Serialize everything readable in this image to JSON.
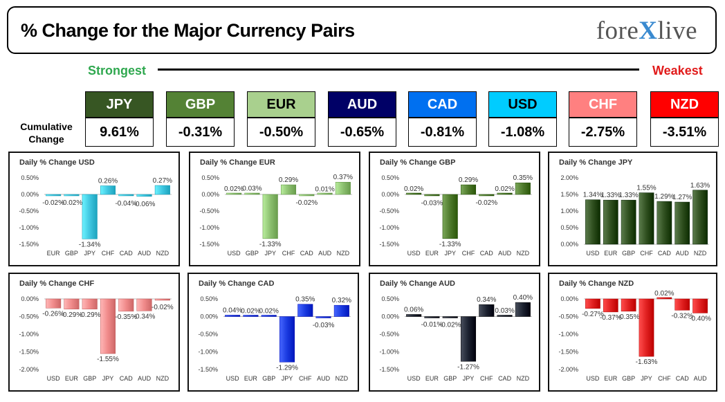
{
  "header": {
    "title": "% Change for the Major Currency Pairs",
    "logo": "forexlive"
  },
  "scale": {
    "strongest": "Strongest",
    "weakest": "Weakest",
    "cumulative_label": "Cumulative Change"
  },
  "currencies": [
    {
      "code": "JPY",
      "value": "9.61%",
      "bg": "#375623",
      "fg": "#ffffff"
    },
    {
      "code": "GBP",
      "value": "-0.31%",
      "bg": "#548235",
      "fg": "#ffffff"
    },
    {
      "code": "EUR",
      "value": "-0.50%",
      "bg": "#a9d08e",
      "fg": "#000000"
    },
    {
      "code": "AUD",
      "value": "-0.65%",
      "bg": "#000066",
      "fg": "#ffffff"
    },
    {
      "code": "CAD",
      "value": "-0.81%",
      "bg": "#0070f0",
      "fg": "#ffffff"
    },
    {
      "code": "USD",
      "value": "-1.08%",
      "bg": "#00ccff",
      "fg": "#000000"
    },
    {
      "code": "CHF",
      "value": "-2.75%",
      "bg": "#ff8080",
      "fg": "#ffffff"
    },
    {
      "code": "NZD",
      "value": "-3.51%",
      "bg": "#ff0000",
      "fg": "#ffffff"
    }
  ],
  "chart_data": [
    {
      "type": "bar",
      "title": "Daily % Change USD",
      "color": "#3fc6e0",
      "categories": [
        "EUR",
        "GBP",
        "JPY",
        "CHF",
        "CAD",
        "AUD",
        "NZD"
      ],
      "values": [
        -0.02,
        -0.02,
        -1.34,
        0.26,
        -0.04,
        -0.06,
        0.27
      ],
      "labels": [
        "-0.02%",
        "-0.02%",
        "-1.34%",
        "0.26%",
        "-0.04%",
        "-0.06%",
        "0.27%"
      ],
      "yticks": [
        "0.50%",
        "0.00%",
        "-0.50%",
        "-1.00%",
        "-1.50%"
      ],
      "ylim": [
        -1.5,
        0.5
      ]
    },
    {
      "type": "bar",
      "title": "Daily % Change EUR",
      "color": "#8cc070",
      "categories": [
        "USD",
        "GBP",
        "JPY",
        "CHF",
        "CAD",
        "AUD",
        "NZD"
      ],
      "values": [
        0.02,
        0.03,
        -1.33,
        0.29,
        -0.02,
        0.01,
        0.37
      ],
      "labels": [
        "0.02%",
        "0.03%",
        "-1.33%",
        "0.29%",
        "-0.02%",
        "0.01%",
        "0.37%"
      ],
      "yticks": [
        "0.50%",
        "0.00%",
        "-0.50%",
        "-1.00%",
        "-1.50%"
      ],
      "ylim": [
        -1.5,
        0.5
      ]
    },
    {
      "type": "bar",
      "title": "Daily % Change GBP",
      "color": "#4e7a2c",
      "categories": [
        "USD",
        "EUR",
        "JPY",
        "CHF",
        "CAD",
        "AUD",
        "NZD"
      ],
      "values": [
        0.02,
        -0.03,
        -1.33,
        0.29,
        -0.02,
        0.02,
        0.35
      ],
      "labels": [
        "0.02%",
        "-0.03%",
        "-1.33%",
        "0.29%",
        "-0.02%",
        "0.02%",
        "0.35%"
      ],
      "yticks": [
        "0.50%",
        "0.00%",
        "-0.50%",
        "-1.00%",
        "-1.50%"
      ],
      "ylim": [
        -1.5,
        0.5
      ]
    },
    {
      "type": "bar",
      "title": "Daily % Change JPY",
      "color": "#2f4f1f",
      "categories": [
        "USD",
        "EUR",
        "GBP",
        "CHF",
        "CAD",
        "AUD",
        "NZD"
      ],
      "values": [
        1.34,
        1.33,
        1.33,
        1.55,
        1.29,
        1.27,
        1.63
      ],
      "labels": [
        "1.34%",
        "1.33%",
        "1.33%",
        "1.55%",
        "1.29%",
        "1.27%",
        "1.63%"
      ],
      "yticks": [
        "2.00%",
        "1.50%",
        "1.00%",
        "0.50%",
        "0.00%"
      ],
      "ylim": [
        0,
        2
      ]
    },
    {
      "type": "bar",
      "title": "Daily % Change CHF",
      "color": "#f08a8a",
      "categories": [
        "USD",
        "EUR",
        "GBP",
        "JPY",
        "CAD",
        "AUD",
        "NZD"
      ],
      "values": [
        -0.26,
        -0.29,
        -0.29,
        -1.55,
        -0.35,
        -0.34,
        -0.02
      ],
      "labels": [
        "-0.26%",
        "-0.29%",
        "-0.29%",
        "-1.55%",
        "-0.35%",
        "-0.34%",
        "-0.02%"
      ],
      "yticks": [
        "0.00%",
        "-0.50%",
        "-1.00%",
        "-1.50%",
        "-2.00%"
      ],
      "ylim": [
        -2,
        0
      ]
    },
    {
      "type": "bar",
      "title": "Daily % Change CAD",
      "color": "#1a3ae0",
      "categories": [
        "USD",
        "EUR",
        "GBP",
        "JPY",
        "CHF",
        "AUD",
        "NZD"
      ],
      "values": [
        0.04,
        0.02,
        0.02,
        -1.29,
        0.35,
        -0.03,
        0.32
      ],
      "labels": [
        "0.04%",
        "0.02%",
        "0.02%",
        "-1.29%",
        "0.35%",
        "-0.03%",
        "0.32%"
      ],
      "yticks": [
        "0.50%",
        "0.00%",
        "-0.50%",
        "-1.00%",
        "-1.50%"
      ],
      "ylim": [
        -1.5,
        0.5
      ]
    },
    {
      "type": "bar",
      "title": "Daily % Change AUD",
      "color": "#1c2230",
      "categories": [
        "USD",
        "EUR",
        "GBP",
        "JPY",
        "CHF",
        "CAD",
        "NZD"
      ],
      "values": [
        0.06,
        -0.01,
        -0.02,
        -1.27,
        0.34,
        0.03,
        0.4
      ],
      "labels": [
        "0.06%",
        "-0.01%",
        "-0.02%",
        "-1.27%",
        "0.34%",
        "0.03%",
        "0.40%"
      ],
      "yticks": [
        "0.50%",
        "0.00%",
        "-0.50%",
        "-1.00%",
        "-1.50%"
      ],
      "ylim": [
        -1.5,
        0.5
      ]
    },
    {
      "type": "bar",
      "title": "Daily % Change NZD",
      "color": "#e02020",
      "categories": [
        "USD",
        "EUR",
        "GBP",
        "JPY",
        "CHF",
        "CAD",
        "AUD"
      ],
      "values": [
        -0.27,
        -0.37,
        -0.35,
        -1.63,
        0.02,
        -0.32,
        -0.4
      ],
      "labels": [
        "-0.27%",
        "-0.37%",
        "-0.35%",
        "-1.63%",
        "0.02%",
        "-0.32%",
        "-0.40%"
      ],
      "yticks": [
        "0.00%",
        "-0.50%",
        "-1.00%",
        "-1.50%",
        "-2.00%"
      ],
      "ylim": [
        -2,
        0
      ]
    }
  ]
}
